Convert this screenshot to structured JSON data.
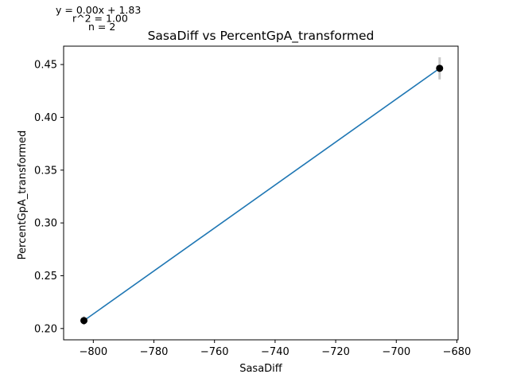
{
  "chart_data": {
    "type": "scatter",
    "title": "SasaDiff vs PercentGpA_transformed",
    "xlabel": "SasaDiff",
    "ylabel": "PercentGpA_transformed",
    "xlim": [
      -809.8,
      -679.6
    ],
    "ylim": [
      0.1893,
      0.4674
    ],
    "xticks": [
      -800,
      -780,
      -760,
      -740,
      -720,
      -700,
      -680
    ],
    "xtick_labels": [
      "−800",
      "−780",
      "−760",
      "−740",
      "−720",
      "−700",
      "−680"
    ],
    "yticks": [
      0.2,
      0.25,
      0.3,
      0.35,
      0.4,
      0.45
    ],
    "ytick_labels": [
      "0.20",
      "0.25",
      "0.30",
      "0.35",
      "0.40",
      "0.45"
    ],
    "grid": false,
    "points": [
      {
        "x": -803.1,
        "y": 0.2075,
        "yerr": 0.004
      },
      {
        "x": -685.7,
        "y": 0.4464,
        "yerr": 0.0105
      }
    ],
    "fit_line": {
      "x": [
        -803.1,
        -685.7
      ],
      "y": [
        0.2075,
        0.4464
      ]
    },
    "annotations": {
      "equation": "y = 0.00x + 1.83",
      "r_squared": "r^2 = 1.00",
      "n": "n = 2"
    },
    "colors": {
      "line": "#1f77b4",
      "marker": "#000000",
      "errorbar": "#c8c8c8",
      "axes": "#000000"
    }
  }
}
